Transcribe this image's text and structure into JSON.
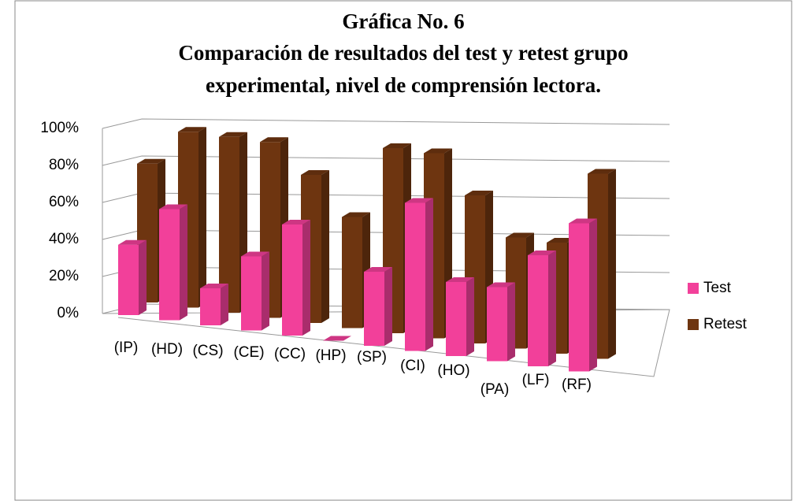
{
  "chart_data": {
    "type": "bar3d",
    "title": [
      "Gráfica No. 6",
      "Comparación de resultados del test y retest grupo",
      "experimental, nivel de comprensión lectora."
    ],
    "categories": [
      "(IP)",
      "(HD)",
      "(CS)",
      "(CE)",
      "(CC)",
      "(HP)",
      "(SP)",
      "(CI)",
      "(HO)",
      "(PA)",
      "(LF)",
      "(RF)"
    ],
    "series": [
      {
        "name": "Test",
        "color": "#f2409a",
        "values": [
          38,
          60,
          20,
          40,
          60,
          0,
          40,
          80,
          40,
          40,
          60,
          80
        ]
      },
      {
        "name": "Retest",
        "color": "#6e3510",
        "values": [
          75,
          95,
          95,
          95,
          80,
          60,
          100,
          100,
          80,
          60,
          60,
          100
        ]
      }
    ],
    "ylim": [
      0,
      100
    ],
    "yticks": [
      {
        "value": 0,
        "label": "0%"
      },
      {
        "value": 20,
        "label": "20%"
      },
      {
        "value": 40,
        "label": "40%"
      },
      {
        "value": 60,
        "label": "60%"
      },
      {
        "value": 80,
        "label": "80%"
      },
      {
        "value": 100,
        "label": "100%"
      }
    ],
    "grid": true,
    "legend": "right"
  }
}
